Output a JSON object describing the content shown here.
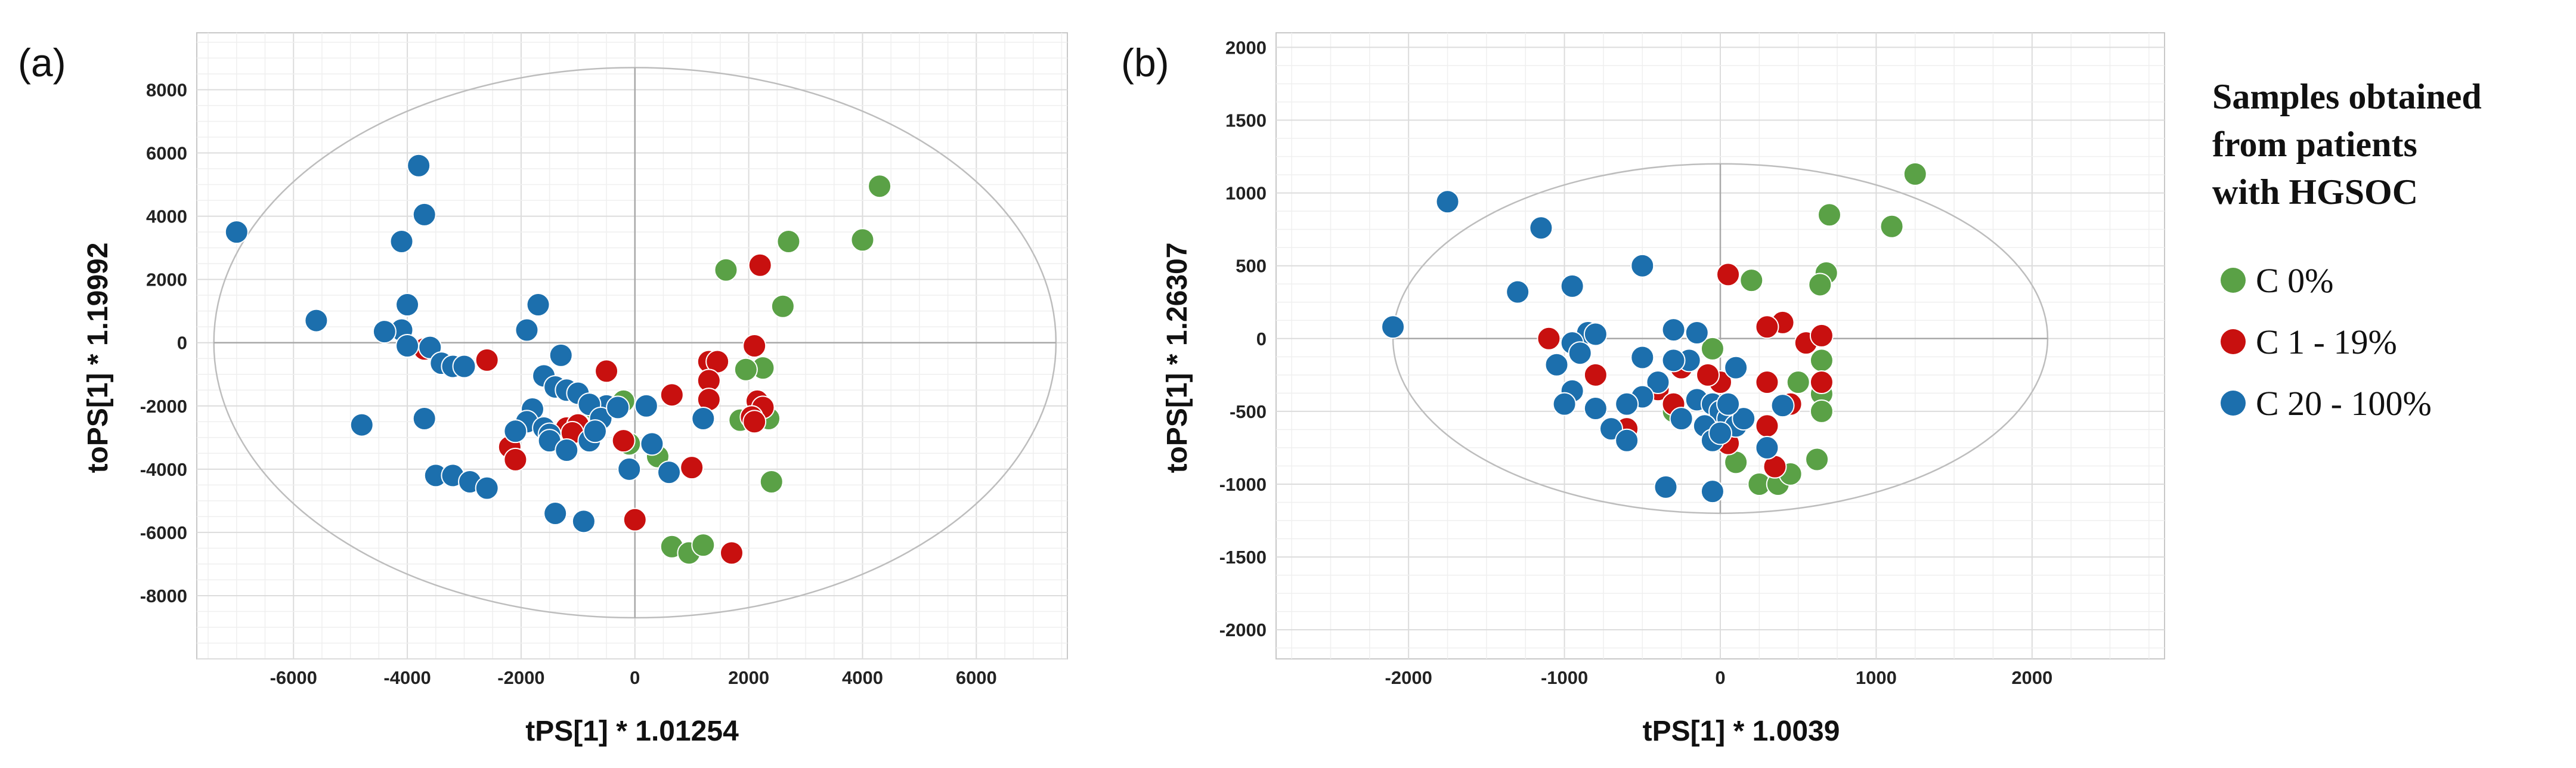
{
  "colors": {
    "C 0%": "#5aa146",
    "C 1 - 19%": "#c8100f",
    "C 20 - 100%": "#1c6fad"
  },
  "legend": {
    "title_lines": [
      "Samples obtained",
      "from patients",
      "with HGSOC"
    ],
    "entries": [
      {
        "label": "C 0%",
        "group": "C 0%"
      },
      {
        "label": "C 1 - 19%",
        "group": "C 1 - 19%"
      },
      {
        "label": "C 20 - 100%",
        "group": "C 20 - 100%"
      }
    ]
  },
  "chart_data": [
    {
      "type": "scatter",
      "panel_label": "(a)",
      "xlabel": "tPS[1] * 1.01254",
      "ylabel": "toPS[1] * 1.19992",
      "xlim": [
        -7700,
        7600
      ],
      "ylim": [
        -10000,
        9800
      ],
      "xticks": [
        -6000,
        -4000,
        -2000,
        0,
        2000,
        4000,
        6000
      ],
      "yticks": [
        -8000,
        -6000,
        -4000,
        -2000,
        0,
        2000,
        4000,
        6000,
        8000
      ],
      "ellipse": {
        "cx": 0,
        "cy": 0,
        "rx": 7400,
        "ry": 8700
      },
      "series": [
        {
          "name": "C 0%",
          "points": [
            [
              4300,
              4950
            ],
            [
              4000,
              3250
            ],
            [
              2700,
              3200
            ],
            [
              1600,
              2300
            ],
            [
              2600,
              1150
            ],
            [
              2250,
              -800
            ],
            [
              1950,
              -850
            ],
            [
              2350,
              -2400
            ],
            [
              1850,
              -2450
            ],
            [
              2400,
              -4400
            ],
            [
              -200,
              -1850
            ],
            [
              -700,
              -2100
            ],
            [
              -100,
              -3200
            ],
            [
              400,
              -3600
            ],
            [
              650,
              -6450
            ],
            [
              950,
              -6650
            ],
            [
              1200,
              -6400
            ]
          ]
        },
        {
          "name": "C 1 - 19%",
          "points": [
            [
              2200,
              2450
            ],
            [
              2100,
              -100
            ],
            [
              1300,
              -600
            ],
            [
              1450,
              -600
            ],
            [
              1300,
              -1200
            ],
            [
              1300,
              -1800
            ],
            [
              2150,
              -1850
            ],
            [
              2250,
              -2050
            ],
            [
              2050,
              -2350
            ],
            [
              2100,
              -2500
            ],
            [
              650,
              -1650
            ],
            [
              -500,
              -900
            ],
            [
              -2600,
              -550
            ],
            [
              -3700,
              -200
            ],
            [
              -1800,
              -2450
            ],
            [
              -1200,
              -2700
            ],
            [
              -1000,
              -2600
            ],
            [
              -2200,
              -3300
            ],
            [
              -2100,
              -3700
            ],
            [
              -1100,
              -2850
            ],
            [
              -200,
              -3100
            ],
            [
              1000,
              -3950
            ],
            [
              0,
              -5600
            ],
            [
              1700,
              -6650
            ]
          ]
        },
        {
          "name": "C 20 - 100%",
          "points": [
            [
              -7000,
              3500
            ],
            [
              -5600,
              700
            ],
            [
              -3800,
              5600
            ],
            [
              -3700,
              4050
            ],
            [
              -4100,
              3200
            ],
            [
              -4000,
              1200
            ],
            [
              -4100,
              400
            ],
            [
              -4400,
              350
            ],
            [
              -4000,
              -100
            ],
            [
              -3600,
              -150
            ],
            [
              -3400,
              -650
            ],
            [
              -3200,
              -750
            ],
            [
              -3000,
              -750
            ],
            [
              -1700,
              1200
            ],
            [
              -1900,
              400
            ],
            [
              -1300,
              -400
            ],
            [
              -1600,
              -1050
            ],
            [
              -1400,
              -1400
            ],
            [
              -1200,
              -1500
            ],
            [
              -1000,
              -1600
            ],
            [
              -500,
              -2000
            ],
            [
              -800,
              -1950
            ],
            [
              -600,
              -2400
            ],
            [
              -300,
              -2050
            ],
            [
              -1800,
              -2100
            ],
            [
              -1900,
              -2500
            ],
            [
              -2100,
              -2800
            ],
            [
              -1600,
              -2700
            ],
            [
              -1500,
              -2900
            ],
            [
              -1500,
              -3100
            ],
            [
              -800,
              -3100
            ],
            [
              -700,
              -2800
            ],
            [
              -1200,
              -3400
            ],
            [
              200,
              -2000
            ],
            [
              300,
              -3200
            ],
            [
              600,
              -4100
            ],
            [
              -100,
              -4000
            ],
            [
              1200,
              -2400
            ],
            [
              -3700,
              -2400
            ],
            [
              -3500,
              -4200
            ],
            [
              -3200,
              -4200
            ],
            [
              -2900,
              -4400
            ],
            [
              -2600,
              -4600
            ],
            [
              -4800,
              -2600
            ],
            [
              -1400,
              -5400
            ],
            [
              -900,
              -5650
            ]
          ]
        }
      ]
    },
    {
      "type": "scatter",
      "panel_label": "(b)",
      "xlabel": "tPS[1] * 1.0039",
      "ylabel": "toPS[1] * 1.26307",
      "xlim": [
        -2850,
        2850
      ],
      "ylim": [
        -2200,
        2100
      ],
      "xticks": [
        -2000,
        -1000,
        0,
        1000,
        2000
      ],
      "yticks": [
        -2000,
        -1500,
        -1000,
        -500,
        0,
        500,
        1000,
        1500,
        2000
      ],
      "ellipse": {
        "cx": 0,
        "cy": 0,
        "rx": 2100,
        "ry": 1200
      },
      "series": [
        {
          "name": "C 0%",
          "points": [
            [
              1250,
              1130
            ],
            [
              1100,
              770
            ],
            [
              700,
              850
            ],
            [
              680,
              450
            ],
            [
              640,
              370
            ],
            [
              650,
              -150
            ],
            [
              650,
              -380
            ],
            [
              650,
              -500
            ],
            [
              620,
              -830
            ],
            [
              200,
              400
            ],
            [
              -50,
              -70
            ],
            [
              500,
              -300
            ],
            [
              100,
              -850
            ],
            [
              250,
              -1000
            ],
            [
              370,
              -1000
            ],
            [
              450,
              -930
            ],
            [
              -300,
              -500
            ],
            [
              0,
              -700
            ]
          ]
        },
        {
          "name": "C 1 - 19%",
          "points": [
            [
              50,
              440
            ],
            [
              400,
              110
            ],
            [
              300,
              80
            ],
            [
              550,
              -30
            ],
            [
              650,
              20
            ],
            [
              650,
              -300
            ],
            [
              300,
              -300
            ],
            [
              0,
              -300
            ],
            [
              -80,
              -250
            ],
            [
              -400,
              -350
            ],
            [
              -300,
              -450
            ],
            [
              -600,
              -620
            ],
            [
              -800,
              -250
            ],
            [
              -1100,
              0
            ],
            [
              450,
              -450
            ],
            [
              300,
              -600
            ],
            [
              50,
              -720
            ],
            [
              350,
              -880
            ],
            [
              -250,
              -200
            ]
          ]
        },
        {
          "name": "C 20 - 100%",
          "points": [
            [
              -2100,
              80
            ],
            [
              -1750,
              940
            ],
            [
              -1150,
              760
            ],
            [
              -1300,
              320
            ],
            [
              -950,
              360
            ],
            [
              -850,
              40
            ],
            [
              -950,
              -30
            ],
            [
              -800,
              30
            ],
            [
              -900,
              -100
            ],
            [
              -1050,
              -180
            ],
            [
              -500,
              -130
            ],
            [
              -300,
              60
            ],
            [
              -150,
              40
            ],
            [
              -200,
              -150
            ],
            [
              -300,
              -150
            ],
            [
              -400,
              -300
            ],
            [
              -500,
              -400
            ],
            [
              -600,
              -450
            ],
            [
              -700,
              -620
            ],
            [
              -800,
              -480
            ],
            [
              -950,
              -360
            ],
            [
              -1000,
              -450
            ],
            [
              -600,
              -700
            ],
            [
              -250,
              -550
            ],
            [
              -150,
              -420
            ],
            [
              -50,
              -450
            ],
            [
              0,
              -500
            ],
            [
              50,
              -550
            ],
            [
              100,
              -600
            ],
            [
              150,
              -550
            ],
            [
              50,
              -450
            ],
            [
              100,
              -200
            ],
            [
              -100,
              -600
            ],
            [
              -50,
              -700
            ],
            [
              0,
              -650
            ],
            [
              300,
              -750
            ],
            [
              400,
              -460
            ],
            [
              -350,
              -1020
            ],
            [
              -50,
              -1050
            ],
            [
              -500,
              500
            ]
          ]
        }
      ]
    }
  ]
}
